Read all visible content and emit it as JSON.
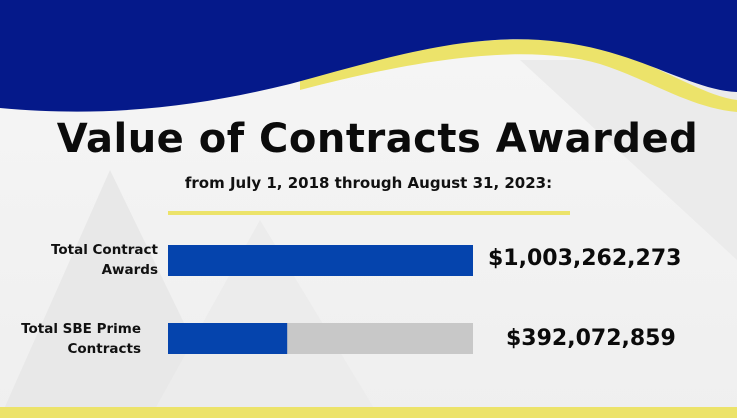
{
  "colors": {
    "header_blue": "#05198a",
    "accent_yellow": "#ece36a",
    "bar_blue": "#0544ad",
    "track_gray": "#c8c8c8",
    "background": "#f2f2f2"
  },
  "chart_data": {
    "type": "bar",
    "orientation": "horizontal",
    "title": "Value of Contracts Awarded",
    "subtitle": "from July 1, 2018 through August 31, 2023:",
    "categories": [
      "Total Contract Awards",
      "Total SBE Prime Contracts"
    ],
    "category_lines": [
      [
        "Total Contract",
        "Awards"
      ],
      [
        "Total SBE Prime",
        "Contracts"
      ]
    ],
    "values": [
      1003262273,
      392072859
    ],
    "value_labels": [
      "$1,003,262,273",
      "$392,072,859"
    ],
    "xlim": [
      0,
      1003262273
    ],
    "grid": false
  }
}
